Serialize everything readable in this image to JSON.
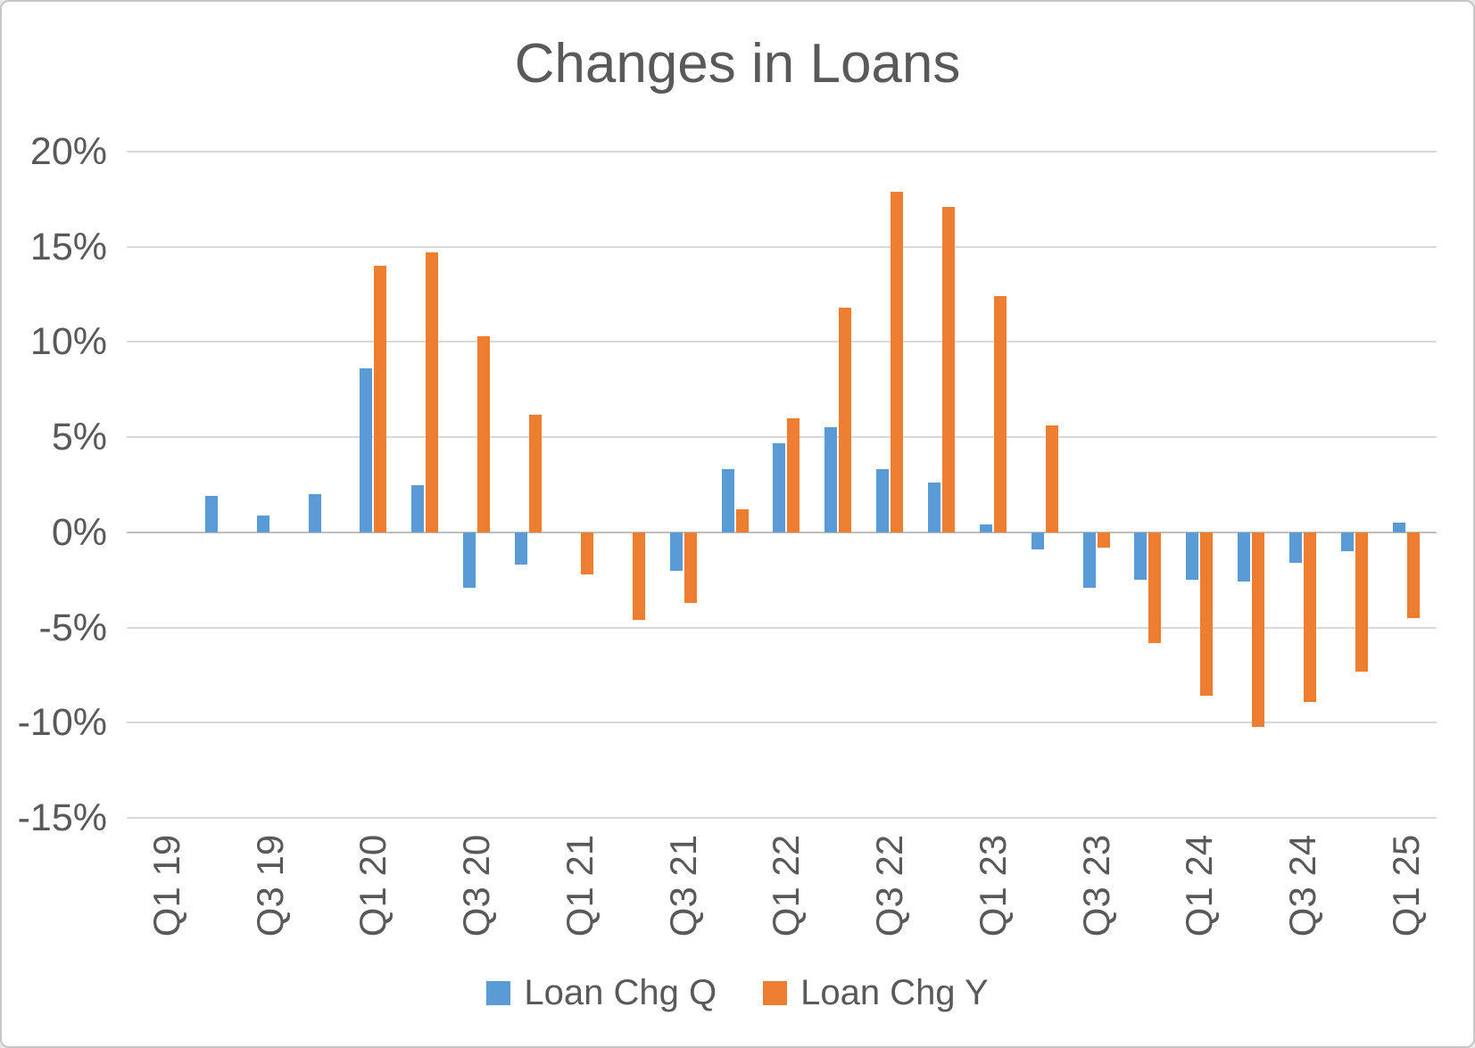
{
  "title": "Changes in Loans",
  "legend": {
    "items": [
      {
        "label": "Loan Chg Q",
        "color": "#5B9BD5"
      },
      {
        "label": "Loan Chg Y",
        "color": "#ED7D31"
      }
    ]
  },
  "chart_data": {
    "type": "bar",
    "title": "Changes in Loans",
    "categories": [
      "Q1 19",
      "Q2 19",
      "Q3 19",
      "Q4 19",
      "Q1 20",
      "Q2 20",
      "Q3 20",
      "Q4 20",
      "Q1 21",
      "Q2 21",
      "Q3 21",
      "Q4 21",
      "Q1 22",
      "Q2 22",
      "Q3 22",
      "Q4 22",
      "Q1 23",
      "Q2 23",
      "Q3 23",
      "Q4 23",
      "Q1 24",
      "Q2 24",
      "Q3 24",
      "Q4 24",
      "Q1 25"
    ],
    "series": [
      {
        "name": "Loan Chg Q",
        "color": "#5B9BD5",
        "values": [
          null,
          1.9,
          0.9,
          2.0,
          8.6,
          2.5,
          -2.9,
          -1.7,
          0,
          0,
          -2.0,
          3.3,
          4.7,
          5.5,
          3.3,
          2.6,
          0.4,
          -0.9,
          -2.9,
          -2.5,
          -2.5,
          -2.6,
          -1.6,
          -1.0,
          0.5
        ]
      },
      {
        "name": "Loan Chg Y",
        "color": "#ED7D31",
        "values": [
          null,
          null,
          null,
          null,
          14.0,
          14.7,
          10.3,
          6.2,
          -2.2,
          -4.6,
          -3.7,
          1.2,
          6.0,
          11.8,
          17.9,
          17.1,
          12.4,
          5.6,
          -0.8,
          -5.8,
          -8.6,
          -10.2,
          -8.9,
          -7.3,
          -4.5
        ]
      }
    ],
    "y_axis": {
      "min": -15,
      "max": 20,
      "step": 5,
      "unit": "%",
      "tick_labels": [
        "20%",
        "15%",
        "10%",
        "5%",
        "0%",
        "-5%",
        "-10%",
        "-15%"
      ]
    },
    "x_axis": {
      "tick_labels": [
        "Q1 19",
        "Q3 19",
        "Q1 20",
        "Q3 20",
        "Q1 21",
        "Q3 21",
        "Q1 22",
        "Q3 22",
        "Q1 23",
        "Q3 23",
        "Q1 24",
        "Q3 24",
        "Q1 25"
      ],
      "tick_every": 2,
      "label_rotation": -90
    },
    "grid": true,
    "legend_position": "bottom",
    "colors": {
      "grid": "#D9D9D9",
      "zero_line": "#BFBFBF",
      "text": "#595959",
      "background": "#FFFFFF"
    }
  }
}
